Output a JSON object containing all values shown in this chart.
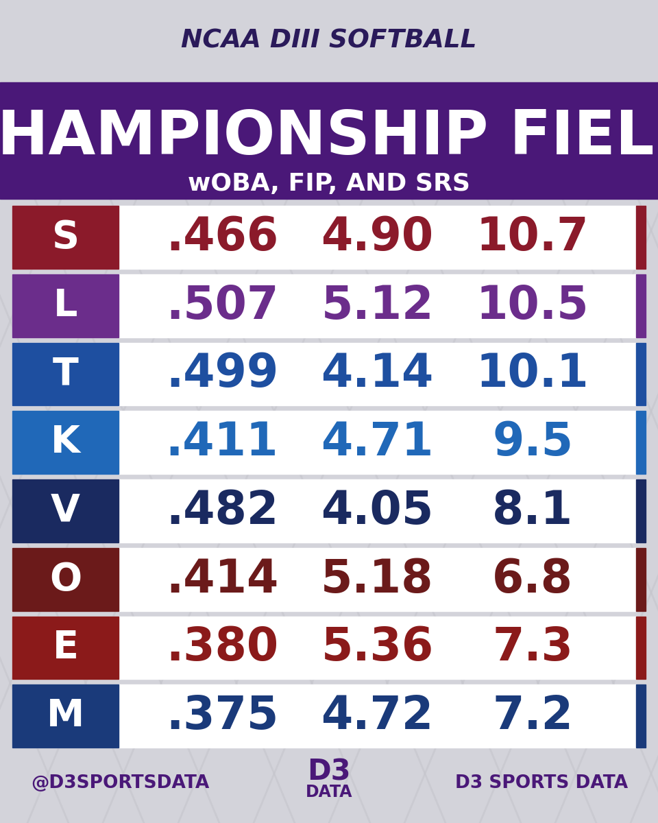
{
  "title_top": "NCAA DIII SOFTBALL",
  "title_main": "CHAMPIONSHIP FIELD",
  "title_sub": "wOBA, FIP, AND SRS",
  "bg_color": "#d3d3da",
  "header_bg": "#4a1878",
  "teams": [
    {
      "woba": ".466",
      "fip": "4.90",
      "srs": "10.7",
      "logo_bg": "#8b1a2a",
      "text_color": "#8b1a2a",
      "bar_color": "#8b1a2a"
    },
    {
      "woba": ".507",
      "fip": "5.12",
      "srs": "10.5",
      "logo_bg": "#6b2d8b",
      "text_color": "#6b2d8b",
      "bar_color": "#6b2d8b"
    },
    {
      "woba": ".499",
      "fip": "4.14",
      "srs": "10.1",
      "logo_bg": "#1e4fa0",
      "text_color": "#1e4fa0",
      "bar_color": "#1e4fa0"
    },
    {
      "woba": ".411",
      "fip": "4.71",
      "srs": "9.5",
      "logo_bg": "#2068b8",
      "text_color": "#2068b8",
      "bar_color": "#2068b8"
    },
    {
      "woba": ".482",
      "fip": "4.05",
      "srs": "8.1",
      "logo_bg": "#1a2a60",
      "text_color": "#1a2a60",
      "bar_color": "#1a2a60"
    },
    {
      "woba": ".414",
      "fip": "5.18",
      "srs": "6.8",
      "logo_bg": "#6b1a1a",
      "text_color": "#6b1a1a",
      "bar_color": "#6b1a1a"
    },
    {
      "woba": ".380",
      "fip": "5.36",
      "srs": "7.3",
      "logo_bg": "#8b1a1a",
      "text_color": "#8b1a1a",
      "bar_color": "#8b1a1a"
    },
    {
      "woba": ".375",
      "fip": "4.72",
      "srs": "7.2",
      "logo_bg": "#1a3a7a",
      "text_color": "#1a3a7a",
      "bar_color": "#1a3a7a"
    }
  ],
  "logo_letters": [
    "S",
    "L",
    "T",
    "K",
    "V",
    "O",
    "E",
    "M"
  ],
  "footer_left": "@D3SPORTSDATA",
  "footer_right": "D3 SPORTS DATA",
  "footer_color": "#4a1878"
}
